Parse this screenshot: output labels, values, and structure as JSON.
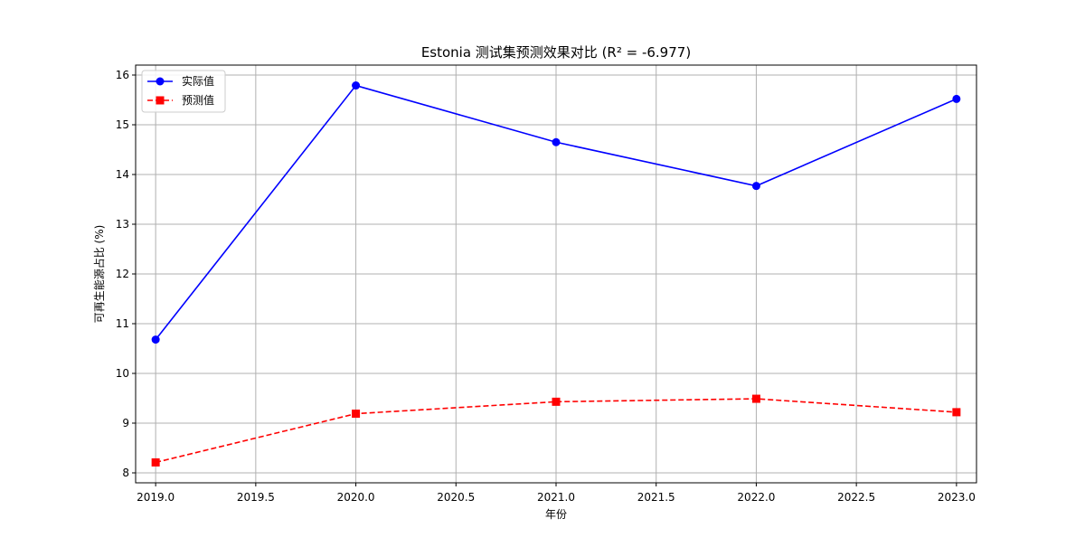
{
  "chart_data": {
    "type": "line",
    "title": "Estonia 测试集预测效果对比 (R² = -6.977)",
    "xlabel": "年份",
    "ylabel": "可再生能源占比 (%)",
    "x": [
      2019,
      2020,
      2021,
      2022,
      2023
    ],
    "xlim": [
      2018.9,
      2023.1
    ],
    "ylim": [
      7.8,
      16.2
    ],
    "x_ticks": [
      2019.0,
      2019.5,
      2020.0,
      2020.5,
      2021.0,
      2021.5,
      2022.0,
      2022.5,
      2023.0
    ],
    "x_tick_labels": [
      "2019.0",
      "2019.5",
      "2020.0",
      "2020.5",
      "2021.0",
      "2021.5",
      "2022.0",
      "2022.5",
      "2023.0"
    ],
    "y_ticks": [
      8,
      9,
      10,
      11,
      12,
      13,
      14,
      15,
      16
    ],
    "y_tick_labels": [
      "8",
      "9",
      "10",
      "11",
      "12",
      "13",
      "14",
      "15",
      "16"
    ],
    "grid": true,
    "legend_position": "top-left",
    "series": [
      {
        "name": "实际值",
        "values": [
          10.68,
          15.79,
          14.65,
          13.77,
          15.52
        ],
        "color": "#0000ff",
        "line_style": "solid",
        "marker": "circle"
      },
      {
        "name": "预测值",
        "values": [
          8.21,
          9.19,
          9.43,
          9.49,
          9.22
        ],
        "color": "#ff0000",
        "line_style": "dashed",
        "marker": "square"
      }
    ]
  }
}
